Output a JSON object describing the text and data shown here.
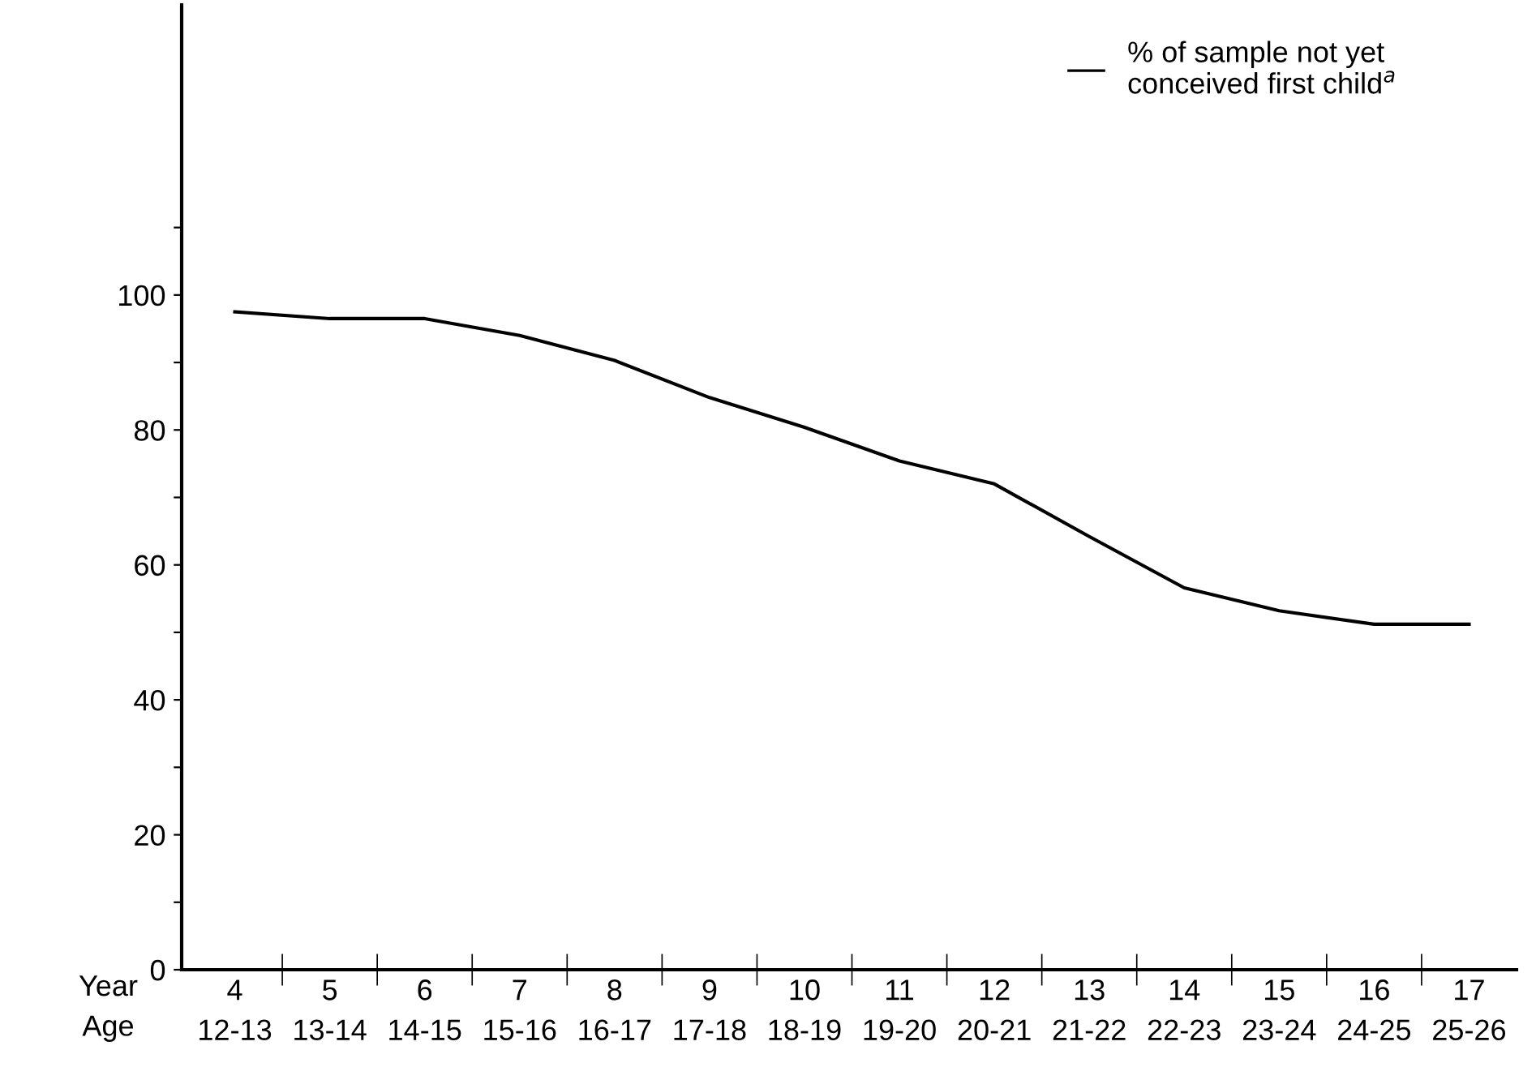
{
  "chart_data": {
    "type": "line",
    "categories": [
      "4\n12-13",
      "5\n13-14",
      "6\n14-15",
      "7\n15-16",
      "8\n16-17",
      "9\n17-18",
      "10\n18-19",
      "11\n19-20",
      "12\n20-21",
      "13\n21-22",
      "14\n22-23",
      "15\n23-24",
      "16\n24-25",
      "17\n25-26"
    ],
    "xlabel": "Year\nAge",
    "series": [
      {
        "name": "% of sample not yet\nconceived first child$^{a}$",
        "color": "#000000",
        "values": [
          97.5,
          96.5,
          96.5,
          94,
          90.3,
          84.8,
          80.4,
          75.4,
          72,
          64.2,
          56.6,
          53.2,
          51.2,
          51.2
        ]
      }
    ],
    "ylim": [
      0,
      143
    ],
    "yticks": [
      0,
      {
        "value": 10,
        "label": null
      },
      20,
      {
        "value": 30,
        "label": null
      },
      40,
      {
        "value": 50,
        "label": null
      },
      60,
      {
        "value": 70,
        "label": null
      },
      80,
      {
        "value": 90,
        "label": null
      },
      100,
      {
        "value": 110,
        "label": null
      }
    ],
    "grid": false,
    "legend": "top right",
    "marker": "none",
    "line_style": "solid"
  }
}
